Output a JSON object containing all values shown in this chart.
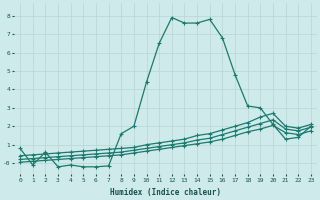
{
  "xlabel": "Humidex (Indice chaleur)",
  "bg_color": "#ceeaeb",
  "grid_color": "#b8d4d4",
  "line_color": "#1a7a6e",
  "xlim": [
    -0.5,
    23.5
  ],
  "ylim": [
    -0.6,
    8.7
  ],
  "xticks": [
    0,
    1,
    2,
    3,
    4,
    5,
    6,
    7,
    8,
    9,
    10,
    11,
    12,
    13,
    14,
    15,
    16,
    17,
    18,
    19,
    20,
    21,
    22,
    23
  ],
  "yticks": [
    0,
    1,
    2,
    3,
    4,
    5,
    6,
    7,
    8
  ],
  "ytick_labels": [
    "-0",
    "1",
    "2",
    "3",
    "4",
    "5",
    "6",
    "7",
    "8"
  ],
  "series": [
    {
      "x": [
        0,
        1,
        2,
        3,
        4,
        5,
        6,
        7,
        8,
        9,
        10,
        11,
        12,
        13,
        14,
        15,
        16,
        17,
        18,
        19,
        20,
        21,
        22,
        23
      ],
      "y": [
        0.8,
        -0.1,
        0.6,
        -0.2,
        -0.1,
        -0.2,
        -0.2,
        -0.15,
        1.6,
        2.0,
        4.4,
        6.5,
        7.9,
        7.6,
        7.6,
        7.8,
        6.8,
        4.8,
        3.1,
        3.0,
        2.1,
        1.3,
        1.4,
        2.0
      ]
    },
    {
      "x": [
        0,
        1,
        2,
        3,
        4,
        5,
        6,
        7,
        8,
        9,
        10,
        11,
        12,
        13,
        14,
        15,
        16,
        17,
        18,
        19,
        20,
        21,
        22,
        23
      ],
      "y": [
        0.4,
        0.45,
        0.5,
        0.55,
        0.6,
        0.65,
        0.7,
        0.75,
        0.8,
        0.85,
        1.0,
        1.1,
        1.2,
        1.3,
        1.5,
        1.6,
        1.8,
        2.0,
        2.2,
        2.5,
        2.7,
        2.0,
        1.9,
        2.1
      ]
    },
    {
      "x": [
        0,
        1,
        2,
        3,
        4,
        5,
        6,
        7,
        8,
        9,
        10,
        11,
        12,
        13,
        14,
        15,
        16,
        17,
        18,
        19,
        20,
        21,
        22,
        23
      ],
      "y": [
        0.2,
        0.25,
        0.3,
        0.35,
        0.4,
        0.45,
        0.5,
        0.55,
        0.6,
        0.7,
        0.8,
        0.9,
        1.0,
        1.1,
        1.25,
        1.35,
        1.55,
        1.75,
        1.95,
        2.15,
        2.35,
        1.85,
        1.75,
        1.95
      ]
    },
    {
      "x": [
        0,
        1,
        2,
        3,
        4,
        5,
        6,
        7,
        8,
        9,
        10,
        11,
        12,
        13,
        14,
        15,
        16,
        17,
        18,
        19,
        20,
        21,
        22,
        23
      ],
      "y": [
        0.05,
        0.1,
        0.15,
        0.2,
        0.25,
        0.3,
        0.35,
        0.4,
        0.45,
        0.55,
        0.65,
        0.75,
        0.85,
        0.95,
        1.05,
        1.15,
        1.3,
        1.5,
        1.7,
        1.85,
        2.05,
        1.65,
        1.55,
        1.75
      ]
    }
  ]
}
